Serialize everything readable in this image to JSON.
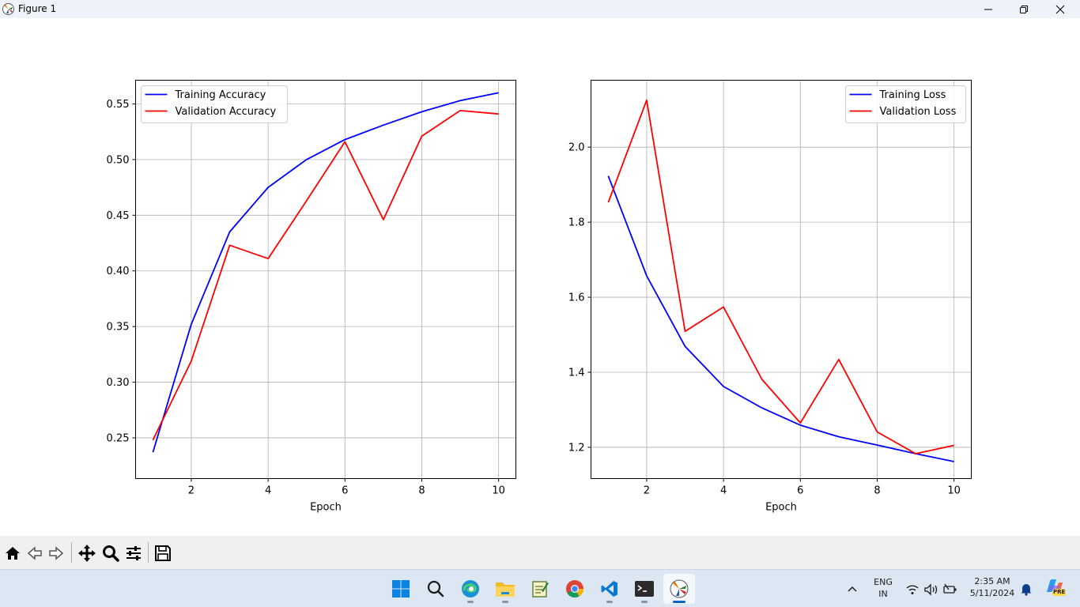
{
  "window": {
    "title": "Figure 1"
  },
  "toolbar": {
    "buttons": [
      "home-icon",
      "back-arrow-icon",
      "forward-arrow-icon",
      "pan-icon",
      "zoom-icon",
      "configure-subplots-icon",
      "save-icon"
    ]
  },
  "taskbar": {
    "apps": [
      "windows-start-icon",
      "search-icon",
      "edge-icon",
      "file-explorer-icon",
      "notepad-icon",
      "chrome-icon",
      "vscode-icon",
      "terminal-icon",
      "matplotlib-icon"
    ],
    "language_line1": "ENG",
    "language_line2": "IN",
    "time": "2:35 AM",
    "date": "5/11/2024",
    "copilot_badge": "PRE"
  },
  "colors": {
    "training": "#0000ff",
    "validation": "#ff0000",
    "grid": "#b0b0b0"
  },
  "chart_data": [
    {
      "type": "line",
      "title": "",
      "xlabel": "Epoch",
      "ylabel": "",
      "x": [
        1,
        2,
        3,
        4,
        5,
        6,
        7,
        8,
        9,
        10
      ],
      "xlim": [
        0.55,
        10.45
      ],
      "ylim": [
        0.2134,
        0.5713
      ],
      "xticks": [
        2,
        4,
        6,
        8,
        10
      ],
      "yticks": [
        0.25,
        0.3,
        0.35,
        0.4,
        0.45,
        0.5,
        0.55
      ],
      "ytick_labels": [
        "0.25",
        "0.30",
        "0.35",
        "0.40",
        "0.45",
        "0.50",
        "0.55"
      ],
      "grid": true,
      "legend": "top-left",
      "series": [
        {
          "name": "Training Accuracy",
          "color": "#0000ff",
          "values": [
            0.237,
            0.352,
            0.435,
            0.475,
            0.5,
            0.518,
            0.531,
            0.543,
            0.553,
            0.56
          ]
        },
        {
          "name": "Validation Accuracy",
          "color": "#ff0000",
          "values": [
            0.248,
            0.319,
            0.423,
            0.411,
            0.463,
            0.516,
            0.446,
            0.521,
            0.544,
            0.541
          ]
        }
      ]
    },
    {
      "type": "line",
      "title": "",
      "xlabel": "Epoch",
      "ylabel": "",
      "x": [
        1,
        2,
        3,
        4,
        5,
        6,
        7,
        8,
        9,
        10
      ],
      "xlim": [
        0.55,
        10.45
      ],
      "ylim": [
        1.1166,
        2.1784
      ],
      "xticks": [
        2,
        4,
        6,
        8,
        10
      ],
      "yticks": [
        1.2,
        1.4,
        1.6,
        1.8,
        2.0
      ],
      "ytick_labels": [
        "1.2",
        "1.4",
        "1.6",
        "1.8",
        "2.0"
      ],
      "grid": true,
      "legend": "top-right",
      "series": [
        {
          "name": "Training Loss",
          "color": "#0000ff",
          "values": [
            1.923,
            1.657,
            1.469,
            1.362,
            1.305,
            1.259,
            1.228,
            1.206,
            1.183,
            1.162
          ]
        },
        {
          "name": "Validation Loss",
          "color": "#ff0000",
          "values": [
            1.853,
            2.125,
            1.509,
            1.574,
            1.381,
            1.265,
            1.434,
            1.241,
            1.183,
            1.205
          ]
        }
      ]
    }
  ]
}
